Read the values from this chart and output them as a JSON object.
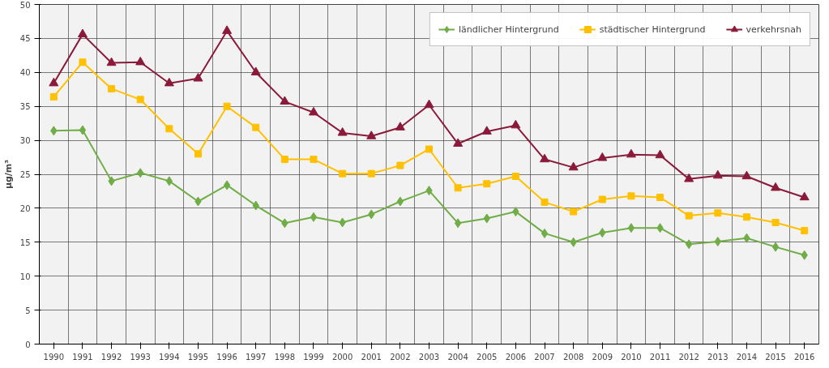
{
  "chart_data": {
    "type": "line",
    "ylabel": "µg/m³",
    "categories": [
      "1990",
      "1991",
      "1992",
      "1993",
      "1994",
      "1995",
      "1996",
      "1997",
      "1998",
      "1999",
      "2000",
      "2001",
      "2002",
      "2003",
      "2004",
      "2005",
      "2006",
      "2007",
      "2008",
      "2009",
      "2010",
      "2011",
      "2012",
      "2013",
      "2014",
      "2015",
      "2016"
    ],
    "series": [
      {
        "name": "ländlicher Hintergrund",
        "color": "#70ad47",
        "marker": "diamond",
        "values": [
          31.4,
          31.5,
          24.0,
          25.2,
          24.0,
          21.0,
          23.4,
          20.4,
          17.8,
          18.7,
          17.9,
          19.1,
          21.0,
          22.6,
          17.8,
          18.5,
          19.5,
          16.3,
          15.0,
          16.4,
          17.1,
          17.1,
          14.7,
          15.1,
          15.6,
          14.3,
          13.1
        ]
      },
      {
        "name": "städtischer Hintergrund",
        "color": "#ffc000",
        "marker": "square",
        "values": [
          36.4,
          41.5,
          37.6,
          36.0,
          31.7,
          28.0,
          35.0,
          31.9,
          27.2,
          27.2,
          25.1,
          25.1,
          26.3,
          28.7,
          23.0,
          23.6,
          24.7,
          20.9,
          19.5,
          21.3,
          21.8,
          21.6,
          18.9,
          19.3,
          18.7,
          17.9,
          16.7
        ]
      },
      {
        "name": "verkehrsnah",
        "color": "#8b1a3a",
        "marker": "triangle",
        "values": [
          38.4,
          45.6,
          41.4,
          41.5,
          38.4,
          39.1,
          46.1,
          40.0,
          35.7,
          34.1,
          31.1,
          30.6,
          31.9,
          35.2,
          29.5,
          31.3,
          32.2,
          27.2,
          26.0,
          27.4,
          27.9,
          27.8,
          24.3,
          24.8,
          24.7,
          23.0,
          21.6
        ]
      }
    ],
    "ylim": [
      0,
      50
    ],
    "yticks": [
      0,
      5,
      10,
      15,
      20,
      25,
      30,
      35,
      40,
      45,
      50
    ],
    "grid": true,
    "legend": "top right"
  }
}
